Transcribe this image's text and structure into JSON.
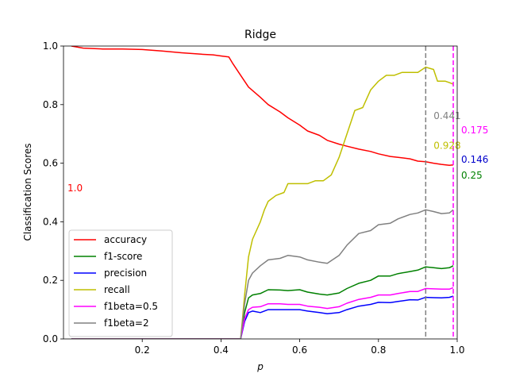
{
  "chart_data": {
    "type": "line",
    "title": "Ridge",
    "xlabel": "p",
    "ylabel": "Classification Scores",
    "xlim": [
      0.0,
      1.0
    ],
    "ylim": [
      0.0,
      1.0
    ],
    "xticks": [
      "0.2",
      "0.4",
      "0.6",
      "0.8",
      "1.0"
    ],
    "xtick_values": [
      0.2,
      0.4,
      0.6,
      0.8,
      1.0
    ],
    "yticks": [
      "0.0",
      "0.2",
      "0.4",
      "0.6",
      "0.8",
      "1.0"
    ],
    "ytick_values": [
      0.0,
      0.2,
      0.4,
      0.6,
      0.8,
      1.0
    ],
    "grid": false,
    "legend_position": "lower-left",
    "series": [
      {
        "name": "accuracy",
        "color": "#ff0000",
        "points": [
          [
            0.02,
            1.0
          ],
          [
            0.05,
            0.993
          ],
          [
            0.1,
            0.99
          ],
          [
            0.15,
            0.99
          ],
          [
            0.2,
            0.988
          ],
          [
            0.25,
            0.983
          ],
          [
            0.3,
            0.977
          ],
          [
            0.35,
            0.972
          ],
          [
            0.38,
            0.97
          ],
          [
            0.4,
            0.966
          ],
          [
            0.42,
            0.963
          ],
          [
            0.43,
            0.94
          ],
          [
            0.45,
            0.9
          ],
          [
            0.47,
            0.86
          ],
          [
            0.5,
            0.825
          ],
          [
            0.52,
            0.8
          ],
          [
            0.55,
            0.775
          ],
          [
            0.57,
            0.755
          ],
          [
            0.6,
            0.73
          ],
          [
            0.62,
            0.71
          ],
          [
            0.65,
            0.695
          ],
          [
            0.67,
            0.678
          ],
          [
            0.7,
            0.665
          ],
          [
            0.72,
            0.658
          ],
          [
            0.75,
            0.648
          ],
          [
            0.78,
            0.64
          ],
          [
            0.8,
            0.632
          ],
          [
            0.83,
            0.623
          ],
          [
            0.85,
            0.62
          ],
          [
            0.88,
            0.615
          ],
          [
            0.9,
            0.607
          ],
          [
            0.92,
            0.605
          ],
          [
            0.94,
            0.6
          ],
          [
            0.96,
            0.596
          ],
          [
            0.98,
            0.593
          ],
          [
            0.99,
            0.594
          ]
        ]
      },
      {
        "name": "f1-score",
        "color": "#008000",
        "points": [
          [
            0.02,
            0.0
          ],
          [
            0.45,
            0.0
          ],
          [
            0.46,
            0.09
          ],
          [
            0.47,
            0.14
          ],
          [
            0.48,
            0.15
          ],
          [
            0.5,
            0.155
          ],
          [
            0.52,
            0.168
          ],
          [
            0.55,
            0.167
          ],
          [
            0.57,
            0.165
          ],
          [
            0.6,
            0.168
          ],
          [
            0.62,
            0.16
          ],
          [
            0.65,
            0.153
          ],
          [
            0.67,
            0.15
          ],
          [
            0.7,
            0.157
          ],
          [
            0.72,
            0.172
          ],
          [
            0.75,
            0.19
          ],
          [
            0.78,
            0.2
          ],
          [
            0.8,
            0.215
          ],
          [
            0.83,
            0.215
          ],
          [
            0.85,
            0.223
          ],
          [
            0.88,
            0.23
          ],
          [
            0.9,
            0.235
          ],
          [
            0.92,
            0.246
          ],
          [
            0.94,
            0.243
          ],
          [
            0.96,
            0.24
          ],
          [
            0.98,
            0.243
          ],
          [
            0.99,
            0.25
          ]
        ]
      },
      {
        "name": "precision",
        "color": "#0000ff",
        "points": [
          [
            0.02,
            0.0
          ],
          [
            0.45,
            0.0
          ],
          [
            0.46,
            0.06
          ],
          [
            0.47,
            0.09
          ],
          [
            0.48,
            0.095
          ],
          [
            0.5,
            0.09
          ],
          [
            0.52,
            0.1
          ],
          [
            0.55,
            0.1
          ],
          [
            0.57,
            0.1
          ],
          [
            0.6,
            0.1
          ],
          [
            0.62,
            0.095
          ],
          [
            0.65,
            0.09
          ],
          [
            0.67,
            0.086
          ],
          [
            0.7,
            0.09
          ],
          [
            0.72,
            0.1
          ],
          [
            0.75,
            0.112
          ],
          [
            0.78,
            0.118
          ],
          [
            0.8,
            0.125
          ],
          [
            0.83,
            0.124
          ],
          [
            0.85,
            0.128
          ],
          [
            0.88,
            0.134
          ],
          [
            0.9,
            0.133
          ],
          [
            0.92,
            0.142
          ],
          [
            0.94,
            0.141
          ],
          [
            0.96,
            0.14
          ],
          [
            0.98,
            0.142
          ],
          [
            0.99,
            0.146
          ]
        ]
      },
      {
        "name": "recall",
        "color": "#bfbf00",
        "points": [
          [
            0.02,
            0.0
          ],
          [
            0.45,
            0.0
          ],
          [
            0.46,
            0.15
          ],
          [
            0.47,
            0.28
          ],
          [
            0.48,
            0.34
          ],
          [
            0.5,
            0.4
          ],
          [
            0.51,
            0.44
          ],
          [
            0.52,
            0.47
          ],
          [
            0.54,
            0.49
          ],
          [
            0.56,
            0.5
          ],
          [
            0.57,
            0.53
          ],
          [
            0.6,
            0.53
          ],
          [
            0.62,
            0.53
          ],
          [
            0.64,
            0.54
          ],
          [
            0.66,
            0.54
          ],
          [
            0.68,
            0.56
          ],
          [
            0.7,
            0.62
          ],
          [
            0.72,
            0.7
          ],
          [
            0.74,
            0.78
          ],
          [
            0.76,
            0.79
          ],
          [
            0.78,
            0.85
          ],
          [
            0.8,
            0.88
          ],
          [
            0.82,
            0.9
          ],
          [
            0.84,
            0.9
          ],
          [
            0.86,
            0.91
          ],
          [
            0.88,
            0.91
          ],
          [
            0.9,
            0.91
          ],
          [
            0.92,
            0.928
          ],
          [
            0.94,
            0.92
          ],
          [
            0.95,
            0.88
          ],
          [
            0.97,
            0.88
          ],
          [
            0.98,
            0.875
          ],
          [
            0.99,
            0.87
          ]
        ]
      },
      {
        "name": "f1beta=0.5",
        "color": "#ff00ff",
        "points": [
          [
            0.02,
            0.0
          ],
          [
            0.45,
            0.0
          ],
          [
            0.46,
            0.07
          ],
          [
            0.47,
            0.1
          ],
          [
            0.48,
            0.108
          ],
          [
            0.5,
            0.11
          ],
          [
            0.52,
            0.12
          ],
          [
            0.55,
            0.12
          ],
          [
            0.57,
            0.118
          ],
          [
            0.6,
            0.118
          ],
          [
            0.62,
            0.112
          ],
          [
            0.65,
            0.108
          ],
          [
            0.67,
            0.104
          ],
          [
            0.7,
            0.11
          ],
          [
            0.72,
            0.122
          ],
          [
            0.75,
            0.135
          ],
          [
            0.78,
            0.142
          ],
          [
            0.8,
            0.15
          ],
          [
            0.83,
            0.15
          ],
          [
            0.85,
            0.155
          ],
          [
            0.88,
            0.162
          ],
          [
            0.9,
            0.162
          ],
          [
            0.92,
            0.172
          ],
          [
            0.94,
            0.171
          ],
          [
            0.96,
            0.17
          ],
          [
            0.98,
            0.17
          ],
          [
            0.99,
            0.175
          ]
        ]
      },
      {
        "name": "f1beta=2",
        "color": "#808080",
        "points": [
          [
            0.02,
            0.0
          ],
          [
            0.45,
            0.0
          ],
          [
            0.46,
            0.12
          ],
          [
            0.47,
            0.2
          ],
          [
            0.48,
            0.225
          ],
          [
            0.5,
            0.25
          ],
          [
            0.52,
            0.27
          ],
          [
            0.55,
            0.275
          ],
          [
            0.57,
            0.285
          ],
          [
            0.6,
            0.28
          ],
          [
            0.62,
            0.27
          ],
          [
            0.65,
            0.262
          ],
          [
            0.67,
            0.258
          ],
          [
            0.7,
            0.285
          ],
          [
            0.72,
            0.32
          ],
          [
            0.75,
            0.36
          ],
          [
            0.78,
            0.37
          ],
          [
            0.8,
            0.39
          ],
          [
            0.83,
            0.395
          ],
          [
            0.85,
            0.41
          ],
          [
            0.88,
            0.425
          ],
          [
            0.9,
            0.43
          ],
          [
            0.92,
            0.441
          ],
          [
            0.94,
            0.435
          ],
          [
            0.96,
            0.428
          ],
          [
            0.98,
            0.43
          ],
          [
            0.99,
            0.441
          ]
        ]
      }
    ],
    "vlines": [
      {
        "x": 0.92,
        "color": "#808080"
      },
      {
        "x": 0.99,
        "color": "#ff00ff"
      }
    ],
    "annotations": [
      {
        "text": "1.0",
        "x": 0.0,
        "y": 0.515,
        "color": "#ff0000"
      },
      {
        "text": "0.441",
        "x": 0.93,
        "y": 0.762,
        "color": "#808080"
      },
      {
        "text": "0.928",
        "x": 0.93,
        "y": 0.66,
        "color": "#bfbf00"
      },
      {
        "text": "0.175",
        "x": 1.0,
        "y": 0.713,
        "color": "#ff00ff"
      },
      {
        "text": "0.146",
        "x": 1.0,
        "y": 0.612,
        "color": "#0000cc"
      },
      {
        "text": "0.25",
        "x": 1.0,
        "y": 0.558,
        "color": "#008000"
      }
    ]
  }
}
